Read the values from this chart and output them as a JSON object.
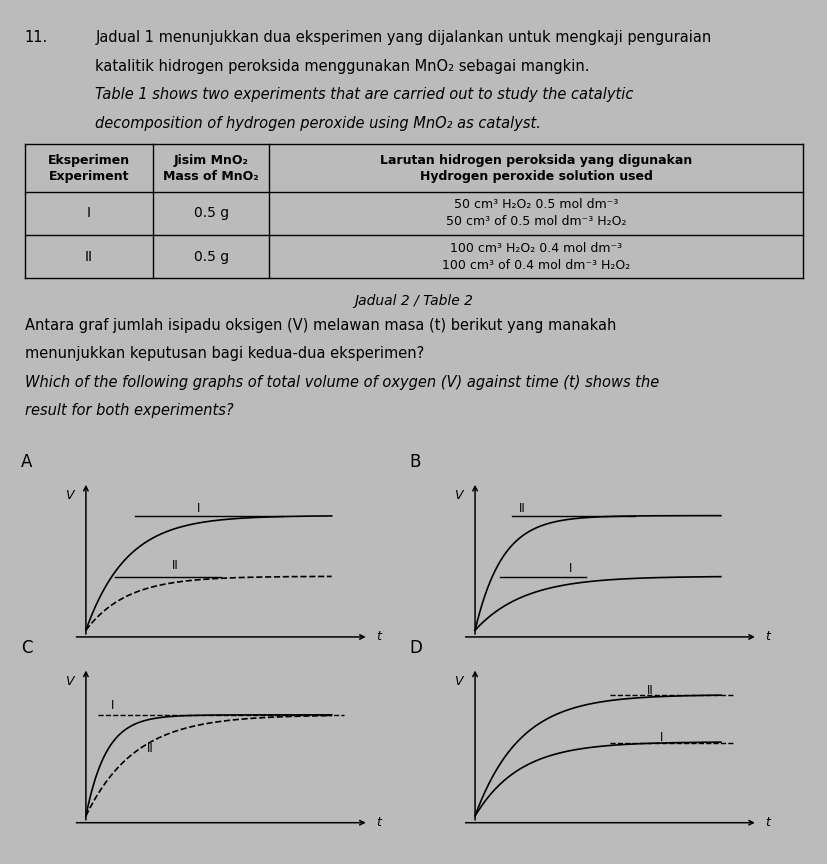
{
  "page_bg": "#c8c8c8",
  "content_bg": "#e8e8e8",
  "graph_bg": "#e0e0e0",
  "line_color": "#222222",
  "q_num": "11.",
  "malay_line1": "Jadual 1 menunjukkan dua eksperimen yang dijalankan untuk mengkaji penguraian",
  "malay_line2": "katalitik hidrogen peroksida menggunakan MnO₂ sebagai mangkin.",
  "eng_line1": "Table 1 shows two experiments that are carried out to study the catalytic",
  "eng_line2": "decomposition of hydrogen peroxide using MnO₂ as catalyst.",
  "hdr1": "Eksperimen\nExperiment",
  "hdr2": "Jisim MnO₂\nMass of MnO₂",
  "hdr3": "Larutan hidrogen peroksida yang digunakan\nHydrogen peroxide solution used",
  "r1c1": "I",
  "r1c2": "0.5 g",
  "r1c3a": "50 cm³ H₂O₂ 0.5 mol dm⁻³",
  "r1c3b": "50 cm³ of 0.5 mol dm⁻³ H₂O₂",
  "r2c1": "II",
  "r2c2": "0.5 g",
  "r2c3a": "100 cm³ H₂O₂ 0.4 mol dm⁻³",
  "r2c3b": "100 cm³ of 0.4 mol dm⁻³ H₂O₂",
  "caption": "Jadual 2 / Table 2",
  "sub_malay1": "Antara graf jumlah isipadu oksigen (V) melawan masa (t) berikut yang manakah",
  "sub_malay2": "menunjukkan keputusan bagi kedua-dua eksperimen?",
  "sub_eng1": "Which of the following graphs of total volume of oxygen (V) against time (t) shows the",
  "sub_eng2": "result for both experiments?"
}
